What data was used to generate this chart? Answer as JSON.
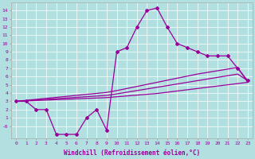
{
  "x": [
    0,
    1,
    2,
    3,
    4,
    5,
    6,
    7,
    8,
    9,
    10,
    11,
    12,
    13,
    14,
    15,
    16,
    17,
    18,
    19,
    20,
    21,
    22,
    23
  ],
  "y_main": [
    3,
    3,
    2,
    2,
    -1,
    -1,
    -1,
    1,
    2,
    -0.5,
    9,
    9.5,
    12,
    14,
    14.3,
    12.0,
    10,
    9.5,
    9,
    8.5,
    8.5,
    8.5,
    7,
    5.5
  ],
  "y_line1": [
    3.0,
    3.05,
    3.1,
    3.15,
    3.2,
    3.25,
    3.3,
    3.35,
    3.4,
    3.45,
    3.55,
    3.65,
    3.75,
    3.85,
    3.95,
    4.1,
    4.25,
    4.4,
    4.55,
    4.7,
    4.85,
    5.0,
    5.15,
    5.3
  ],
  "y_line2": [
    3.0,
    3.12,
    3.24,
    3.36,
    3.48,
    3.6,
    3.72,
    3.84,
    3.96,
    4.08,
    4.3,
    4.55,
    4.8,
    5.05,
    5.3,
    5.55,
    5.8,
    6.05,
    6.3,
    6.5,
    6.7,
    6.9,
    7.1,
    5.3
  ],
  "y_line3": [
    3.0,
    3.08,
    3.16,
    3.24,
    3.32,
    3.4,
    3.48,
    3.56,
    3.64,
    3.72,
    3.9,
    4.1,
    4.3,
    4.5,
    4.7,
    4.9,
    5.1,
    5.3,
    5.5,
    5.7,
    5.9,
    6.1,
    6.3,
    5.5
  ],
  "color": "#990099",
  "bg_color": "#b2e0e0",
  "grid_color": "#ffffff",
  "xlabel": "Windchill (Refroidissement éolien,°C)",
  "ylim": [
    -1.5,
    15
  ],
  "xlim": [
    -0.5,
    23.5
  ],
  "yticks": [
    0,
    1,
    2,
    3,
    4,
    5,
    6,
    7,
    8,
    9,
    10,
    11,
    12,
    13,
    14
  ],
  "ytick_labels": [
    "-0",
    "1",
    "2",
    "3",
    "4",
    "5",
    "6",
    "7",
    "8",
    "9",
    "10",
    "11",
    "12",
    "13",
    "14"
  ],
  "xticks": [
    0,
    1,
    2,
    3,
    4,
    5,
    6,
    7,
    8,
    9,
    10,
    11,
    12,
    13,
    14,
    15,
    16,
    17,
    18,
    19,
    20,
    21,
    22,
    23
  ]
}
